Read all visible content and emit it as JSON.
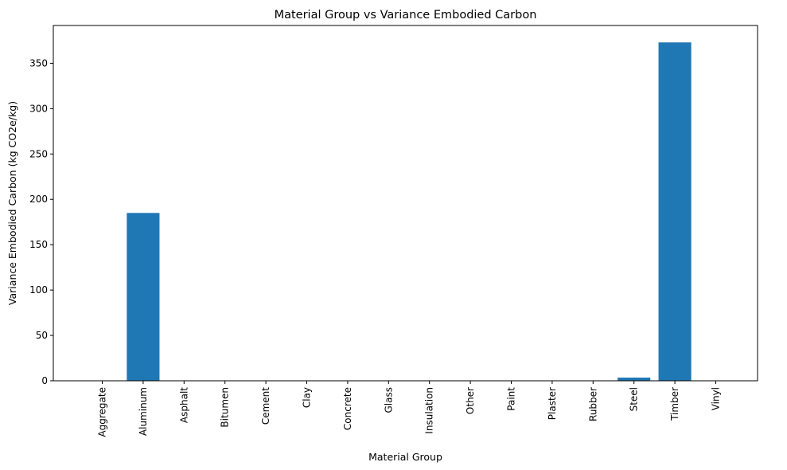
{
  "chart_data": {
    "type": "bar",
    "title": "Material Group vs Variance Embodied Carbon",
    "xlabel": "Material Group",
    "ylabel": "Variance Embodied Carbon (kg CO2e/kg)",
    "categories": [
      "Aggregate",
      "Aluminum",
      "Asphalt",
      "Bitumen",
      "Cement",
      "Clay",
      "Concrete",
      "Glass",
      "Insulation",
      "Other",
      "Paint",
      "Plaster",
      "Rubber",
      "Steel",
      "Timber",
      "Vinyl"
    ],
    "values": [
      0,
      185,
      0,
      0,
      0,
      0,
      0,
      0,
      0,
      0,
      0,
      0,
      0,
      3.5,
      373,
      0
    ],
    "ylim": [
      0,
      391.65
    ],
    "yticks": [
      0,
      50,
      100,
      150,
      200,
      250,
      300,
      350
    ],
    "grid": false,
    "bar_color": "#1f77b4"
  }
}
